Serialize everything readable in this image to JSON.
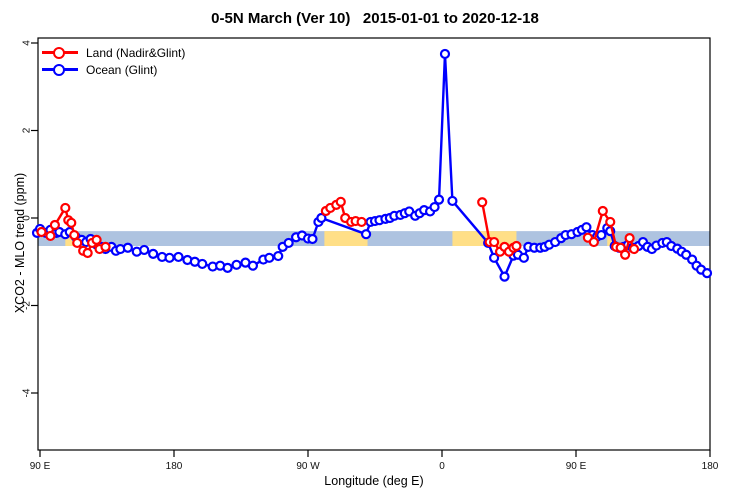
{
  "title": "0-5N March (Ver 10)   2015-01-01 to 2020-12-18",
  "legend": [
    {
      "label": "Land (Nadir&Glint)",
      "color": "#ff0000"
    },
    {
      "label": "Ocean (Glint)",
      "color": "#0000ff"
    }
  ],
  "chart_data": {
    "type": "line",
    "title": "0-5N March (Ver 10)   2015-01-01 to 2020-12-18",
    "xlabel": "Longitude (deg E)",
    "ylabel": "XCO2 - MLO trend (ppm)",
    "x_note": "x is longitude measured continuously eastward from 90E (90..540)",
    "x_range": [
      90,
      540
    ],
    "ylim": [
      -5.3,
      4.1
    ],
    "x_ticks": [
      90,
      180,
      270,
      360,
      450,
      540
    ],
    "x_tick_labels": [
      "90 E",
      "180",
      "90 W",
      "0",
      "90 E",
      "180"
    ],
    "y_ticks": [
      4,
      2,
      0,
      -2,
      -4
    ],
    "y_tick_labels": [
      "4",
      "2",
      "0",
      "-2",
      "-4"
    ],
    "grid": false,
    "legend_position": "top-left",
    "bands": {
      "ocean_band": {
        "color": "#aec3e0",
        "y_from": -0.3,
        "y_to": -0.64,
        "x_from": 90,
        "x_to": 540
      },
      "land_band_color": "#ffdf87",
      "land_band_segments": [
        [
          107,
          114
        ],
        [
          281,
          310
        ],
        [
          367,
          410
        ],
        [
          471,
          476
        ]
      ]
    },
    "series": [
      {
        "name": "Ocean (Glint)",
        "color": "#0000ff",
        "points": [
          [
            88,
            -0.34
          ],
          [
            90,
            -0.25
          ],
          [
            94,
            -0.34
          ],
          [
            97,
            -0.27
          ],
          [
            101,
            -0.34
          ],
          [
            103,
            -0.32
          ],
          [
            107,
            -0.37
          ],
          [
            110,
            -0.32
          ],
          [
            114,
            -0.43
          ],
          [
            118,
            -0.5
          ],
          [
            121,
            -0.55
          ],
          [
            124,
            -0.48
          ],
          [
            128,
            -0.61
          ],
          [
            131,
            -0.66
          ],
          [
            134,
            -0.71
          ],
          [
            138,
            -0.66
          ],
          [
            141,
            -0.75
          ],
          [
            144,
            -0.71
          ],
          [
            149,
            -0.68
          ],
          [
            155,
            -0.77
          ],
          [
            160,
            -0.73
          ],
          [
            166,
            -0.82
          ],
          [
            172,
            -0.89
          ],
          [
            177,
            -0.91
          ],
          [
            183,
            -0.89
          ],
          [
            189,
            -0.96
          ],
          [
            194,
            -1.0
          ],
          [
            199,
            -1.05
          ],
          [
            206,
            -1.11
          ],
          [
            211,
            -1.09
          ],
          [
            216,
            -1.14
          ],
          [
            222,
            -1.07
          ],
          [
            228,
            -1.02
          ],
          [
            233,
            -1.09
          ],
          [
            240,
            -0.95
          ],
          [
            244,
            -0.91
          ],
          [
            250,
            -0.87
          ],
          [
            253,
            -0.66
          ],
          [
            257,
            -0.57
          ],
          [
            262,
            -0.44
          ],
          [
            266,
            -0.4
          ],
          [
            270,
            -0.47
          ],
          [
            273,
            -0.48
          ],
          [
            277,
            -0.09
          ],
          [
            279,
            0.0
          ],
          [
            309,
            -0.37
          ],
          [
            312,
            -0.09
          ],
          [
            315,
            -0.07
          ],
          [
            318,
            -0.05
          ],
          [
            322,
            -0.02
          ],
          [
            325,
            0.0
          ],
          [
            328,
            0.05
          ],
          [
            332,
            0.07
          ],
          [
            335,
            0.11
          ],
          [
            338,
            0.15
          ],
          [
            342,
            0.05
          ],
          [
            345,
            0.11
          ],
          [
            348,
            0.18
          ],
          [
            352,
            0.15
          ],
          [
            355,
            0.25
          ],
          [
            358,
            0.42
          ],
          [
            362,
            3.75
          ],
          [
            367,
            0.39
          ],
          [
            391,
            -0.57
          ],
          [
            395,
            -0.91
          ],
          [
            402,
            -1.34
          ],
          [
            408,
            -0.86
          ],
          [
            411,
            -0.84
          ],
          [
            415,
            -0.91
          ],
          [
            418,
            -0.66
          ],
          [
            422,
            -0.68
          ],
          [
            426,
            -0.68
          ],
          [
            429,
            -0.66
          ],
          [
            432,
            -0.61
          ],
          [
            436,
            -0.55
          ],
          [
            440,
            -0.46
          ],
          [
            443,
            -0.39
          ],
          [
            447,
            -0.37
          ],
          [
            451,
            -0.32
          ],
          [
            454,
            -0.27
          ],
          [
            457,
            -0.21
          ],
          [
            461,
            -0.39
          ],
          [
            464,
            -0.43
          ],
          [
            467,
            -0.39
          ],
          [
            471,
            -0.23
          ],
          [
            473,
            -0.3
          ],
          [
            476,
            -0.64
          ],
          [
            479,
            -0.68
          ],
          [
            482,
            -0.66
          ],
          [
            485,
            -0.61
          ],
          [
            488,
            -0.68
          ],
          [
            492,
            -0.64
          ],
          [
            495,
            -0.55
          ],
          [
            498,
            -0.66
          ],
          [
            501,
            -0.71
          ],
          [
            504,
            -0.63
          ],
          [
            508,
            -0.57
          ],
          [
            511,
            -0.55
          ],
          [
            514,
            -0.64
          ],
          [
            518,
            -0.7
          ],
          [
            521,
            -0.77
          ],
          [
            524,
            -0.84
          ],
          [
            528,
            -0.95
          ],
          [
            531,
            -1.09
          ],
          [
            534,
            -1.18
          ],
          [
            538,
            -1.26
          ]
        ]
      },
      {
        "name": "Land (Nadir&Glint)",
        "color": "#ff0000",
        "segments": [
          [
            [
              91,
              -0.32
            ],
            [
              97,
              -0.41
            ],
            [
              100,
              -0.16
            ],
            [
              107,
              0.23
            ],
            [
              109,
              -0.05
            ],
            [
              111,
              -0.11
            ],
            [
              113,
              -0.39
            ],
            [
              115,
              -0.57
            ],
            [
              119,
              -0.75
            ],
            [
              122,
              -0.8
            ],
            [
              125,
              -0.57
            ],
            [
              128,
              -0.5
            ],
            [
              130,
              -0.71
            ],
            [
              134,
              -0.66
            ]
          ],
          [
            [
              282,
              0.16
            ],
            [
              285,
              0.23
            ],
            [
              289,
              0.3
            ],
            [
              292,
              0.37
            ],
            [
              295,
              0.0
            ],
            [
              299,
              -0.09
            ],
            [
              302,
              -0.07
            ],
            [
              306,
              -0.09
            ]
          ],
          [
            [
              387,
              0.36
            ],
            [
              392,
              -0.55
            ],
            [
              395,
              -0.55
            ],
            [
              399,
              -0.77
            ],
            [
              402,
              -0.66
            ],
            [
              405,
              -0.77
            ],
            [
              408,
              -0.68
            ],
            [
              410,
              -0.64
            ]
          ],
          [
            [
              458,
              -0.45
            ],
            [
              462,
              -0.55
            ],
            [
              468,
              0.16
            ],
            [
              473,
              -0.09
            ],
            [
              477,
              -0.66
            ],
            [
              480,
              -0.68
            ],
            [
              483,
              -0.84
            ],
            [
              486,
              -0.46
            ],
            [
              489,
              -0.71
            ]
          ]
        ]
      }
    ]
  }
}
